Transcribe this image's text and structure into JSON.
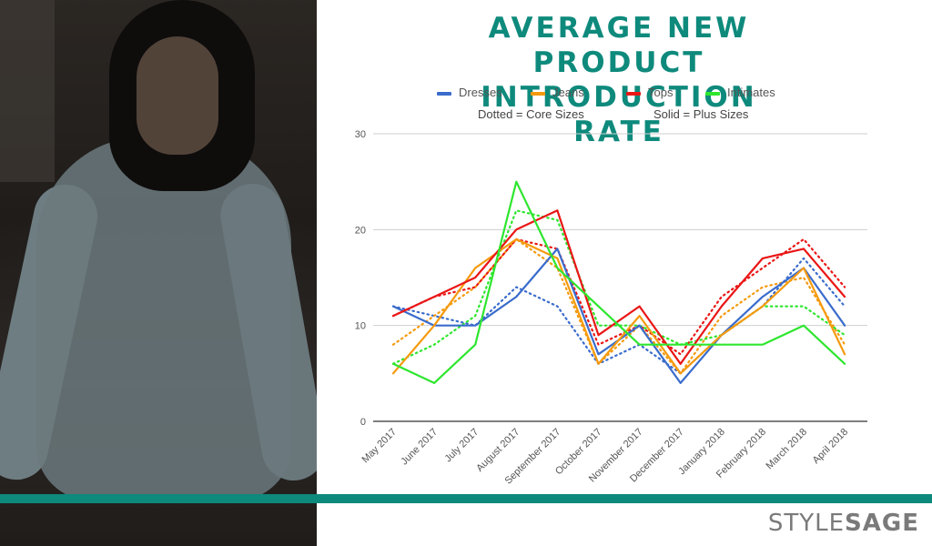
{
  "title_line1": "AVERAGE NEW PRODUCT",
  "title_line2": "INTRODUCTION RATE",
  "legend": [
    {
      "name": "Dresses",
      "color": "#3a6ccc"
    },
    {
      "name": "Jeans",
      "color": "#f59a0e"
    },
    {
      "name": "Tops",
      "color": "#ea1616"
    },
    {
      "name": "Intimates",
      "color": "#2ee62e"
    }
  ],
  "note_dotted": "Dotted = Core Sizes",
  "note_solid": "Solid = Plus Sizes",
  "logo_part1": "STYLE",
  "logo_part2": "SAGE",
  "chart_data": {
    "type": "line",
    "ylim": [
      0,
      30
    ],
    "yticks": [
      0,
      10,
      20,
      30
    ],
    "grid": true,
    "legend_position": "top",
    "categories": [
      "May 2017",
      "June 2017",
      "July 2017",
      "August 2017",
      "September 2017",
      "October 2017",
      "November 2017",
      "December 2017",
      "January 2018",
      "February 2018",
      "March 2018",
      "April 2018"
    ],
    "series": [
      {
        "name": "Dresses",
        "style": "solid",
        "color": "#3a6ccc",
        "values": [
          12,
          10,
          10,
          13,
          18,
          7,
          10,
          4,
          9,
          13,
          16,
          10
        ]
      },
      {
        "name": "Dresses",
        "style": "dotted",
        "color": "#3a6ccc",
        "values": [
          12,
          11,
          10,
          14,
          12,
          6,
          8,
          5,
          9,
          12,
          17,
          12
        ]
      },
      {
        "name": "Jeans",
        "style": "solid",
        "color": "#f59a0e",
        "values": [
          5,
          10,
          16,
          19,
          17,
          6,
          11,
          5,
          9,
          12,
          16,
          7
        ]
      },
      {
        "name": "Jeans",
        "style": "dotted",
        "color": "#f59a0e",
        "values": [
          8,
          11,
          14,
          19,
          16,
          6,
          10,
          5,
          11,
          14,
          15,
          8
        ]
      },
      {
        "name": "Tops",
        "style": "solid",
        "color": "#ea1616",
        "values": [
          11,
          13,
          15,
          20,
          22,
          9,
          12,
          6,
          12,
          17,
          18,
          13
        ]
      },
      {
        "name": "Tops",
        "style": "dotted",
        "color": "#ea1616",
        "values": [
          11,
          13,
          14,
          19,
          18,
          8,
          10,
          7,
          13,
          16,
          19,
          14
        ]
      },
      {
        "name": "Intimates",
        "style": "solid",
        "color": "#2ee62e",
        "values": [
          6,
          4,
          8,
          25,
          16,
          12,
          8,
          8,
          8,
          8,
          10,
          6
        ]
      },
      {
        "name": "Intimates",
        "style": "dotted",
        "color": "#2ee62e",
        "values": [
          6,
          8,
          11,
          22,
          21,
          10,
          10,
          8,
          9,
          12,
          12,
          9
        ]
      }
    ]
  }
}
